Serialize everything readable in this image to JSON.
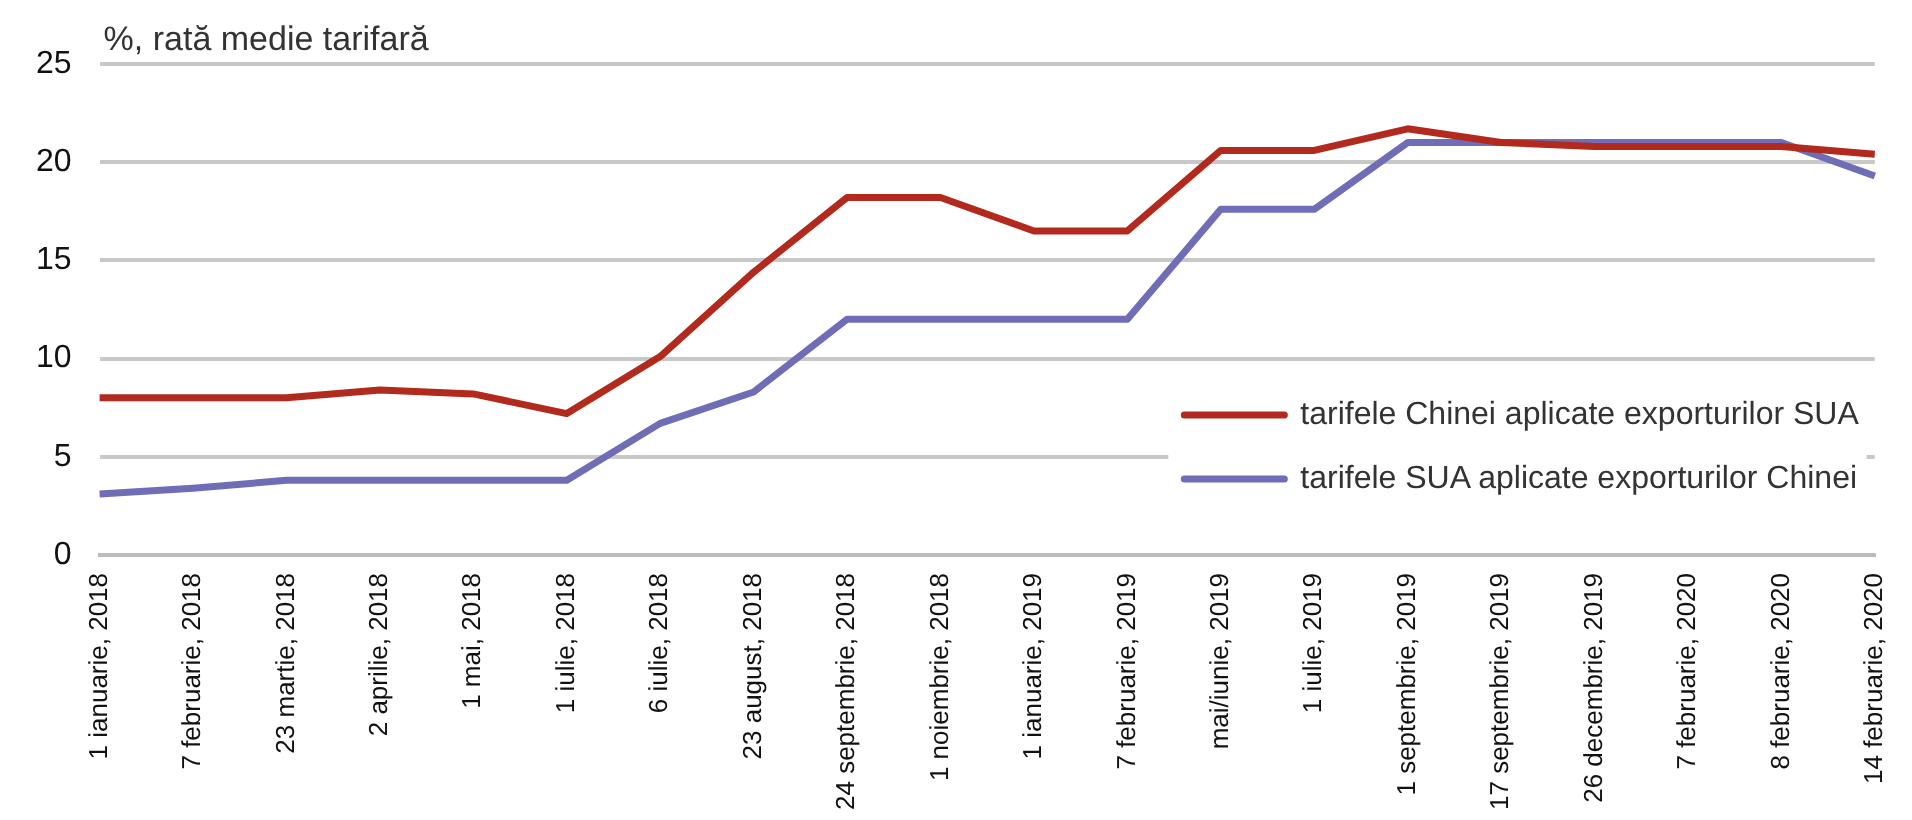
{
  "chart_data": {
    "type": "line",
    "ylabel": "%, rată medie tarifară",
    "categories": [
      "1 ianuarie, 2018",
      "7 februarie, 2018",
      "23 martie, 2018",
      "2 aprilie, 2018",
      "1 mai, 2018",
      "1 iulie, 2018",
      "6 iulie, 2018",
      "23 august, 2018",
      "24 septembrie, 2018",
      "1 noiembrie, 2018",
      "1 ianuarie, 2019",
      "7 februarie, 2019",
      "mai/iunie, 2019",
      "1 iulie, 2019",
      "1 septembrie, 2019",
      "17 septembrie, 2019",
      "26 decembrie, 2019",
      "7 februarie, 2020",
      "8 februarie, 2020",
      "14 februarie, 2020"
    ],
    "series": [
      {
        "name": "tarifele Chinei aplicate exporturilor SUA",
        "color": "#b22a1e",
        "values": [
          8.0,
          8.0,
          8.0,
          8.4,
          8.2,
          7.2,
          10.1,
          14.4,
          18.2,
          18.2,
          16.5,
          16.5,
          20.6,
          20.6,
          21.7,
          21.0,
          20.8,
          20.8,
          20.8,
          20.4
        ]
      },
      {
        "name": "tarifele SUA aplicate exporturilor Chinei",
        "color": "#6e6db5",
        "values": [
          3.1,
          3.4,
          3.8,
          3.8,
          3.8,
          3.8,
          6.7,
          8.3,
          12.0,
          12.0,
          12.0,
          12.0,
          17.6,
          17.6,
          21.0,
          21.0,
          21.0,
          21.0,
          21.0,
          19.3
        ]
      }
    ],
    "ylim": [
      0,
      25
    ],
    "yticks": [
      0,
      5,
      10,
      15,
      20,
      25
    ],
    "grid": "y",
    "legend": "right",
    "marker": "none",
    "line_style": "solid"
  }
}
